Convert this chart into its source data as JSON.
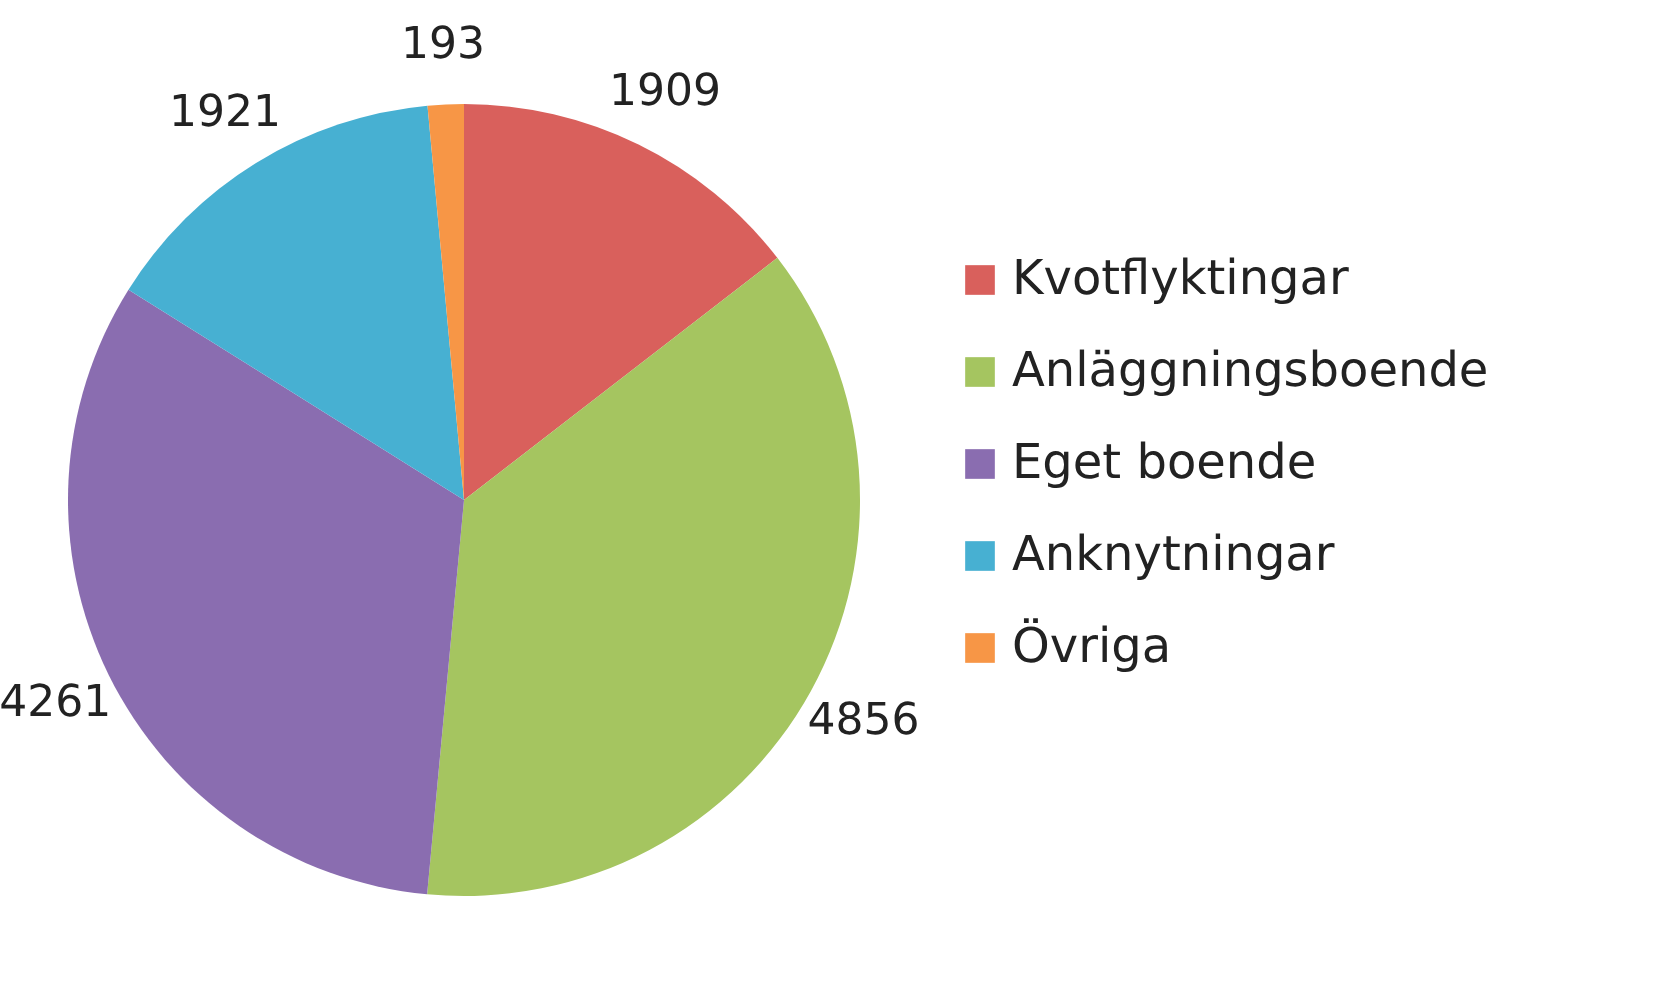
{
  "chart_data": {
    "type": "pie",
    "categories": [
      "Kvotflyktingar",
      "Anläggningsboende",
      "Eget boende",
      "Anknytningar",
      "Övriga"
    ],
    "values": [
      1909,
      4856,
      4261,
      1921,
      193
    ],
    "colors": [
      "#d9605c",
      "#a5c560",
      "#8a6db0",
      "#47b0d2",
      "#f79646"
    ],
    "data_labels": true,
    "legend": "right"
  }
}
